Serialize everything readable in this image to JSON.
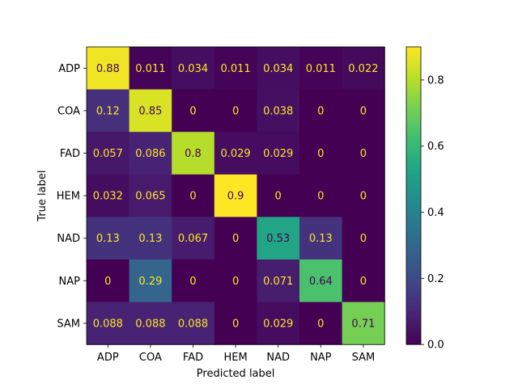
{
  "chart_data": {
    "type": "heatmap",
    "title": "",
    "xlabel": "Predicted label",
    "ylabel": "True label",
    "x_categories": [
      "ADP",
      "COA",
      "FAD",
      "HEM",
      "NAD",
      "NAP",
      "SAM"
    ],
    "y_categories": [
      "ADP",
      "COA",
      "FAD",
      "HEM",
      "NAD",
      "NAP",
      "SAM"
    ],
    "values": [
      [
        0.88,
        0.011,
        0.034,
        0.011,
        0.034,
        0.011,
        0.022
      ],
      [
        0.12,
        0.85,
        0,
        0,
        0.038,
        0,
        0
      ],
      [
        0.057,
        0.086,
        0.8,
        0.029,
        0.029,
        0,
        0
      ],
      [
        0.032,
        0.065,
        0,
        0.9,
        0,
        0,
        0
      ],
      [
        0.13,
        0.13,
        0.067,
        0,
        0.53,
        0.13,
        0
      ],
      [
        0,
        0.29,
        0,
        0,
        0.071,
        0.64,
        0
      ],
      [
        0.088,
        0.088,
        0.088,
        0,
        0.029,
        0,
        0.71
      ]
    ],
    "cell_labels": [
      [
        "0.88",
        "0.011",
        "0.034",
        "0.011",
        "0.034",
        "0.011",
        "0.022"
      ],
      [
        "0.12",
        "0.85",
        "0",
        "0",
        "0.038",
        "0",
        "0"
      ],
      [
        "0.057",
        "0.086",
        "0.8",
        "0.029",
        "0.029",
        "0",
        "0"
      ],
      [
        "0.032",
        "0.065",
        "0",
        "0.9",
        "0",
        "0",
        "0"
      ],
      [
        "0.13",
        "0.13",
        "0.067",
        "0",
        "0.53",
        "0.13",
        "0"
      ],
      [
        "0",
        "0.29",
        "0",
        "0",
        "0.071",
        "0.64",
        "0"
      ],
      [
        "0.088",
        "0.088",
        "0.088",
        "0",
        "0.029",
        "0",
        "0.71"
      ]
    ],
    "colormap": "viridis",
    "vmin": 0,
    "vmax": 0.9,
    "colorbar_ticks": [
      0.0,
      0.2,
      0.4,
      0.6,
      0.8
    ],
    "colorbar_tick_labels": [
      "0.0",
      "0.2",
      "0.4",
      "0.6",
      "0.8"
    ],
    "text_color_dark_bg": "#fde725",
    "text_color_light_bg": "#440154"
  }
}
